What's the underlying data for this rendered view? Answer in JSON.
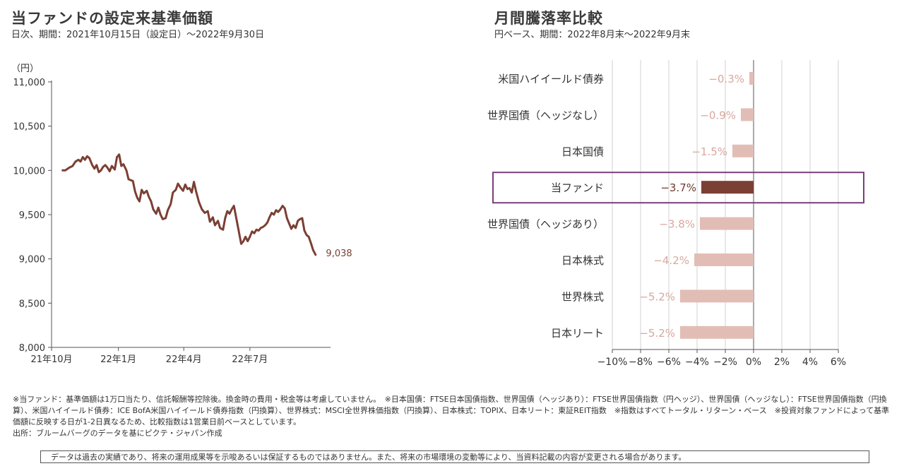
{
  "left": {
    "title": "当ファンドの設定来基準価額",
    "subtitle": "日次、期間：2021年10月15日（設定日）〜2022年9月30日"
  },
  "right": {
    "title": "月間騰落率比較",
    "subtitle": "円ベース、期間：2022年8月末〜2022年9月末"
  },
  "chart_data": [
    {
      "type": "line",
      "unit_label": "（円）",
      "ylim": [
        8000,
        11000
      ],
      "y_ticks": [
        8000,
        8500,
        9000,
        9500,
        10000,
        10500,
        11000
      ],
      "y_tick_labels": [
        "8,000",
        "8,500",
        "9,000",
        "9,500",
        "10,000",
        "10,500",
        "11,000"
      ],
      "x_tick_labels": [
        {
          "label": "21年10月",
          "date": "2021-10-01"
        },
        {
          "label": "22年1月",
          "date": "2022-01-01"
        },
        {
          "label": "22年4月",
          "date": "2022-04-01"
        },
        {
          "label": "22年7月",
          "date": "2022-07-01"
        }
      ],
      "end_label": "9,038",
      "color": "#7b3f34",
      "series": [
        {
          "points": [
            [
              "2021-10-15",
              10000
            ],
            [
              "2021-10-20",
              10000
            ],
            [
              "2021-10-25",
              10030
            ],
            [
              "2021-10-30",
              10050
            ],
            [
              "2021-11-03",
              10100
            ],
            [
              "2021-11-07",
              10120
            ],
            [
              "2021-11-10",
              10100
            ],
            [
              "2021-11-13",
              10150
            ],
            [
              "2021-11-16",
              10120
            ],
            [
              "2021-11-19",
              10160
            ],
            [
              "2021-11-22",
              10140
            ],
            [
              "2021-11-26",
              10060
            ],
            [
              "2021-11-29",
              10020
            ],
            [
              "2021-12-02",
              10060
            ],
            [
              "2021-12-05",
              9980
            ],
            [
              "2021-12-08",
              10000
            ],
            [
              "2021-12-11",
              10040
            ],
            [
              "2021-12-14",
              10060
            ],
            [
              "2021-12-17",
              10030
            ],
            [
              "2021-12-20",
              9990
            ],
            [
              "2021-12-23",
              10050
            ],
            [
              "2021-12-27",
              10010
            ],
            [
              "2021-12-30",
              10150
            ],
            [
              "2022-01-02",
              10180
            ],
            [
              "2022-01-05",
              10050
            ],
            [
              "2022-01-08",
              10070
            ],
            [
              "2022-01-12",
              10000
            ],
            [
              "2022-01-15",
              9900
            ],
            [
              "2022-01-18",
              9890
            ],
            [
              "2022-01-21",
              9880
            ],
            [
              "2022-01-24",
              9760
            ],
            [
              "2022-01-27",
              9690
            ],
            [
              "2022-01-30",
              9650
            ],
            [
              "2022-02-02",
              9780
            ],
            [
              "2022-02-05",
              9740
            ],
            [
              "2022-02-09",
              9770
            ],
            [
              "2022-02-12",
              9700
            ],
            [
              "2022-02-15",
              9650
            ],
            [
              "2022-02-18",
              9560
            ],
            [
              "2022-02-22",
              9510
            ],
            [
              "2022-02-25",
              9580
            ],
            [
              "2022-02-28",
              9500
            ],
            [
              "2022-03-03",
              9450
            ],
            [
              "2022-03-07",
              9460
            ],
            [
              "2022-03-10",
              9550
            ],
            [
              "2022-03-14",
              9620
            ],
            [
              "2022-03-17",
              9750
            ],
            [
              "2022-03-21",
              9780
            ],
            [
              "2022-03-24",
              9850
            ],
            [
              "2022-03-28",
              9800
            ],
            [
              "2022-03-31",
              9770
            ],
            [
              "2022-04-03",
              9840
            ],
            [
              "2022-04-06",
              9790
            ],
            [
              "2022-04-09",
              9800
            ],
            [
              "2022-04-12",
              9750
            ],
            [
              "2022-04-15",
              9870
            ],
            [
              "2022-04-18",
              9760
            ],
            [
              "2022-04-22",
              9640
            ],
            [
              "2022-04-26",
              9560
            ],
            [
              "2022-04-30",
              9520
            ],
            [
              "2022-05-04",
              9540
            ],
            [
              "2022-05-07",
              9420
            ],
            [
              "2022-05-11",
              9470
            ],
            [
              "2022-05-14",
              9380
            ],
            [
              "2022-05-18",
              9430
            ],
            [
              "2022-05-21",
              9350
            ],
            [
              "2022-05-25",
              9330
            ],
            [
              "2022-05-28",
              9460
            ],
            [
              "2022-05-31",
              9540
            ],
            [
              "2022-06-03",
              9510
            ],
            [
              "2022-06-06",
              9560
            ],
            [
              "2022-06-09",
              9600
            ],
            [
              "2022-06-13",
              9430
            ],
            [
              "2022-06-16",
              9300
            ],
            [
              "2022-06-19",
              9170
            ],
            [
              "2022-06-22",
              9200
            ],
            [
              "2022-06-25",
              9250
            ],
            [
              "2022-06-28",
              9200
            ],
            [
              "2022-07-01",
              9250
            ],
            [
              "2022-07-04",
              9310
            ],
            [
              "2022-07-07",
              9290
            ],
            [
              "2022-07-10",
              9330
            ],
            [
              "2022-07-13",
              9320
            ],
            [
              "2022-07-16",
              9350
            ],
            [
              "2022-07-19",
              9360
            ],
            [
              "2022-07-22",
              9380
            ],
            [
              "2022-07-25",
              9410
            ],
            [
              "2022-07-28",
              9470
            ],
            [
              "2022-07-31",
              9520
            ],
            [
              "2022-08-03",
              9500
            ],
            [
              "2022-08-06",
              9550
            ],
            [
              "2022-08-09",
              9530
            ],
            [
              "2022-08-12",
              9560
            ],
            [
              "2022-08-15",
              9600
            ],
            [
              "2022-08-18",
              9570
            ],
            [
              "2022-08-21",
              9460
            ],
            [
              "2022-08-24",
              9400
            ],
            [
              "2022-08-27",
              9340
            ],
            [
              "2022-08-30",
              9380
            ],
            [
              "2022-09-02",
              9350
            ],
            [
              "2022-09-05",
              9430
            ],
            [
              "2022-09-08",
              9450
            ],
            [
              "2022-09-11",
              9460
            ],
            [
              "2022-09-14",
              9320
            ],
            [
              "2022-09-17",
              9270
            ],
            [
              "2022-09-20",
              9250
            ],
            [
              "2022-09-23",
              9180
            ],
            [
              "2022-09-26",
              9100
            ],
            [
              "2022-09-30",
              9038
            ]
          ]
        }
      ]
    },
    {
      "type": "bar",
      "orientation": "horizontal",
      "xlim": [
        -10,
        6
      ],
      "x_ticks": [
        -10,
        -8,
        -6,
        -4,
        -2,
        0,
        2,
        4,
        6
      ],
      "x_tick_labels": [
        "−10%",
        "−8%",
        "−6%",
        "−4%",
        "−2%",
        "0%",
        "2%",
        "4%",
        "6%"
      ],
      "grid": true,
      "highlight_color": "#7b3f34",
      "bar_color": "#e2bdb6",
      "label_color": "#d9a79e",
      "highlight_label_color": "#6e3a31",
      "categories": [
        {
          "name": "米国ハイイールド債券",
          "value": -0.3,
          "label": "−0.3%",
          "highlight": false
        },
        {
          "name": "世界国債（ヘッジなし）",
          "value": -0.9,
          "label": "−0.9%",
          "highlight": false
        },
        {
          "name": "日本国債",
          "value": -1.5,
          "label": "−1.5%",
          "highlight": false
        },
        {
          "name": "当ファンド",
          "value": -3.7,
          "label": "−3.7%",
          "highlight": true
        },
        {
          "name": "世界国債（ヘッジあり）",
          "value": -3.8,
          "label": "−3.8%",
          "highlight": false
        },
        {
          "name": "日本株式",
          "value": -4.2,
          "label": "−4.2%",
          "highlight": false
        },
        {
          "name": "世界株式",
          "value": -5.2,
          "label": "−5.2%",
          "highlight": false
        },
        {
          "name": "日本リート",
          "value": -5.2,
          "label": "−5.2%",
          "highlight": false
        }
      ]
    }
  ],
  "notes": {
    "line1": "※当ファンド：基準価額は1万口当たり、信託報酬等控除後。換金時の費用・税金等は考慮していません。　※日本国債：FTSE日本国債指数、世界国債（ヘッジあり）：FTSE世界国債指数（円ヘッジ）、世界国債（ヘッジなし）：FTSE世界国債指数（円換算）、米国ハイイールド債券：ICE BofA米国ハイイールド債券指数（円換算）、世界株式：MSCI全世界株価指数（円換算）、日本株式：TOPIX、日本リート：東証REIT指数　※指数はすべてトータル・リターン・ベース　※投資対象ファンドによって基準価額に反映する日が1-2日異なるため、比較指数は1営業日前ベースとしています。",
    "line2": "出所：ブルームバーグのデータを基にピクテ・ジャパン作成"
  },
  "disclaimer": "データは過去の実績であり、将来の運用成果等を示唆あるいは保証するものではありません。また、将来の市場環境の変動等により、当資料記載の内容が変更される場合があります。"
}
